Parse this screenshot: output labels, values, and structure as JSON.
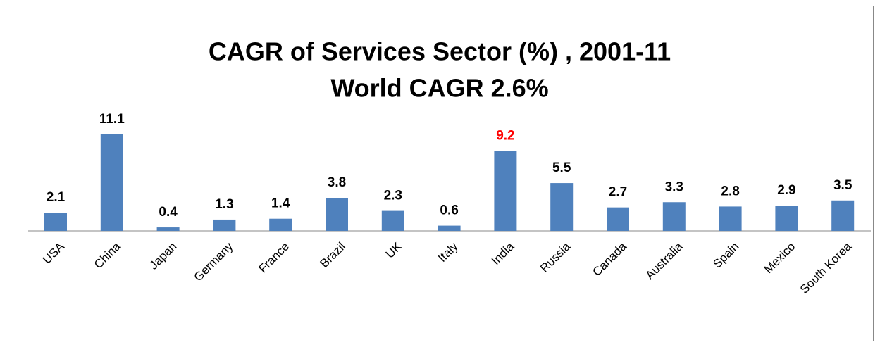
{
  "chart_data": {
    "type": "bar",
    "title": "CAGR of Services Sector (%) , 2001-11",
    "subtitle": "World CAGR 2.6%",
    "categories": [
      "USA",
      "China",
      "Japan",
      "Germany",
      "France",
      "Brazil",
      "UK",
      "Italy",
      "India",
      "Russia",
      "Canada",
      "Australia",
      "Spain",
      "Mexico",
      "South Korea"
    ],
    "values": [
      2.1,
      11.1,
      0.4,
      1.3,
      1.4,
      3.8,
      2.3,
      0.6,
      9.2,
      5.5,
      2.7,
      3.3,
      2.8,
      2.9,
      3.5
    ],
    "color": "#4f81bd",
    "label_colors": [
      "#000000",
      "#000000",
      "#000000",
      "#000000",
      "#000000",
      "#000000",
      "#000000",
      "#000000",
      "#ff0000",
      "#000000",
      "#000000",
      "#000000",
      "#000000",
      "#000000",
      "#000000"
    ]
  }
}
